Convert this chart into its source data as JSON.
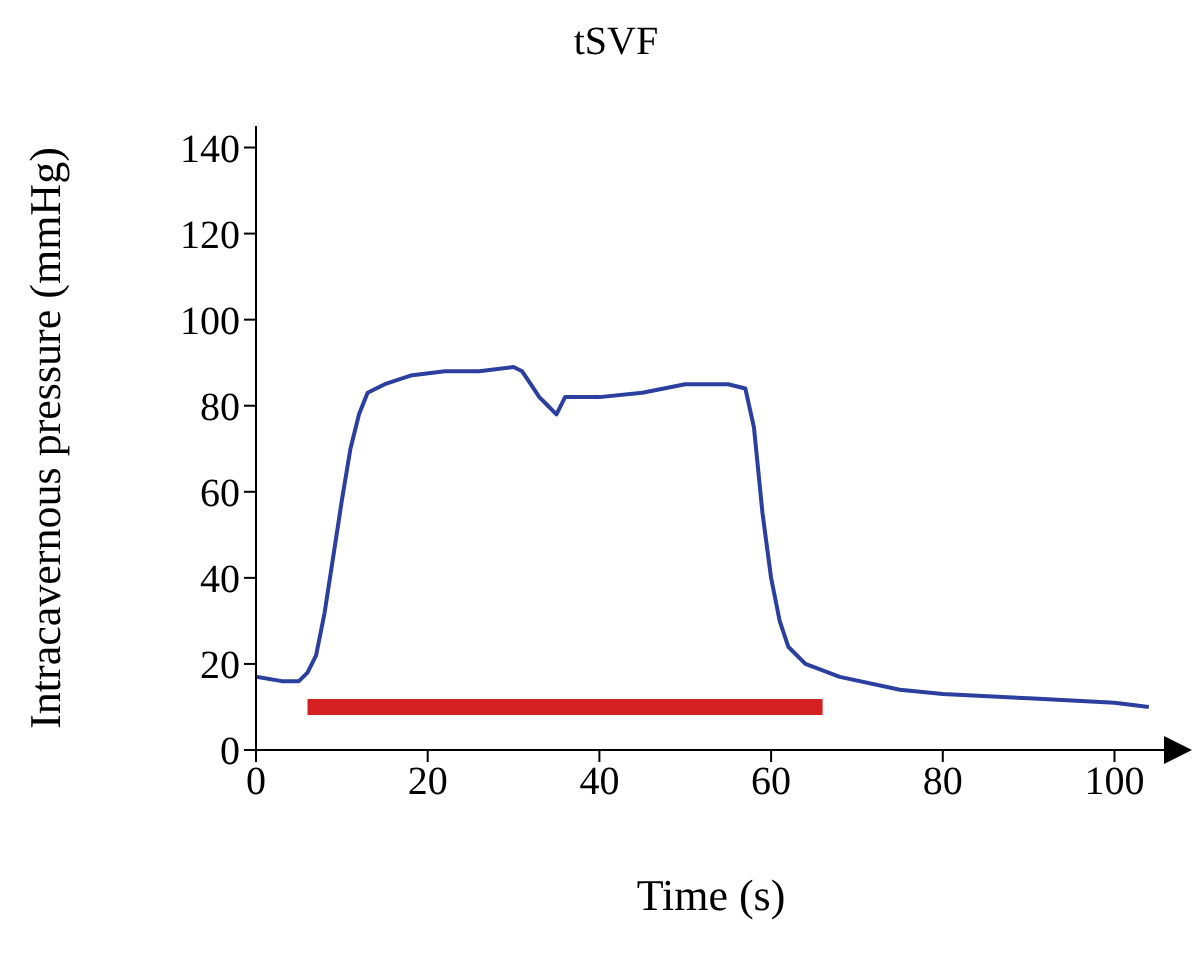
{
  "chart_data": {
    "type": "line",
    "title": "tSVF",
    "xlabel": "Time (s)",
    "ylabel": "Intracavernous pressure (mmHg)",
    "xlim": [
      0,
      106
    ],
    "xticks": [
      0,
      20,
      40,
      60,
      80,
      100
    ],
    "ylim": [
      0,
      145
    ],
    "yticks": [
      0,
      20,
      40,
      60,
      80,
      100,
      120,
      140
    ],
    "grid": false,
    "marker": "none",
    "line_style": "solid",
    "series": [
      {
        "color": "#2b3f9e",
        "x": [
          0,
          3,
          5,
          6,
          7,
          8,
          9,
          10,
          11,
          12,
          13,
          15,
          18,
          22,
          26,
          30,
          31,
          32,
          33,
          34,
          35,
          36,
          40,
          45,
          50,
          55,
          57,
          58,
          59,
          60,
          61,
          62,
          64,
          68,
          75,
          80,
          90,
          100,
          104
        ],
        "values": [
          17,
          16,
          16,
          18,
          22,
          32,
          45,
          58,
          70,
          78,
          83,
          85,
          87,
          88,
          88,
          89,
          88,
          85,
          82,
          80,
          78,
          82,
          82,
          83,
          85,
          85,
          84,
          75,
          55,
          40,
          30,
          24,
          20,
          17,
          14,
          13,
          12,
          11,
          10
        ]
      },
      {
        "type": "line",
        "color": "#d42020",
        "x": [
          6,
          66
        ],
        "values": [
          10,
          10
        ]
      }
    ]
  }
}
